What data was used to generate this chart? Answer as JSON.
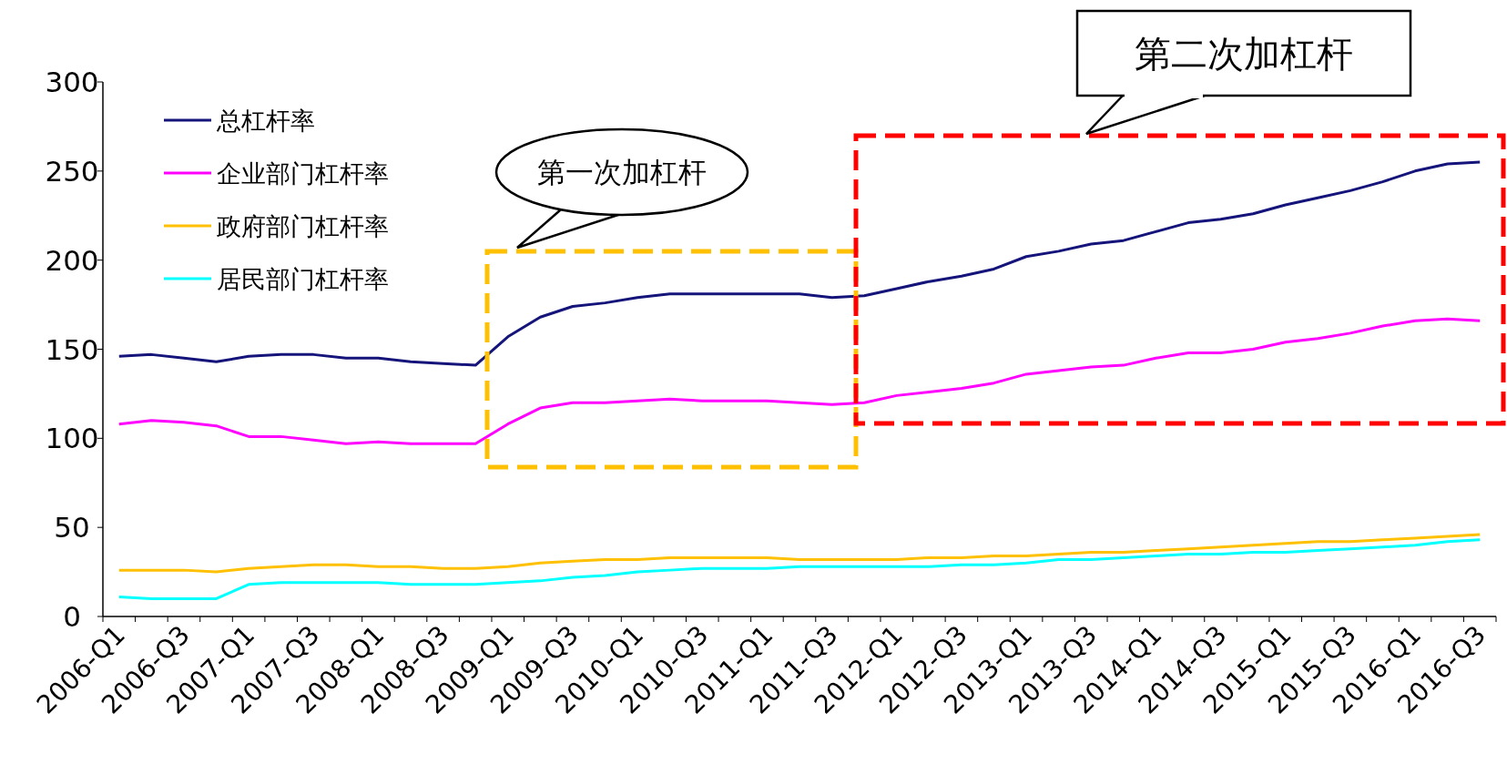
{
  "chart_data": {
    "type": "line",
    "categories": [
      "2006-Q1",
      null,
      "2006-Q3",
      null,
      "2007-Q1",
      null,
      "2007-Q3",
      null,
      "2008-Q1",
      null,
      "2008-Q3",
      null,
      "2009-Q1",
      null,
      "2009-Q3",
      null,
      "2010-Q1",
      null,
      "2010-Q3",
      null,
      "2011-Q1",
      null,
      "2011-Q3",
      null,
      "2012-Q1",
      null,
      "2012-Q3",
      null,
      "2013-Q1",
      null,
      "2013-Q3",
      null,
      "2014-Q1",
      null,
      "2014-Q3",
      null,
      "2015-Q1",
      null,
      "2015-Q3",
      null,
      "2016-Q1",
      null,
      "2016-Q3"
    ],
    "series": [
      {
        "name": "总杠杆率",
        "color": "#14147a",
        "values": [
          146,
          147,
          145,
          143,
          146,
          147,
          147,
          145,
          145,
          143,
          142,
          141,
          157,
          168,
          174,
          176,
          179,
          181,
          181,
          181,
          181,
          181,
          179,
          180,
          184,
          188,
          191,
          195,
          202,
          205,
          209,
          211,
          216,
          221,
          223,
          226,
          231,
          235,
          239,
          244,
          250,
          254,
          255
        ]
      },
      {
        "name": "企业部门杠杆率",
        "color": "#ff00ff",
        "values": [
          108,
          110,
          109,
          107,
          101,
          101,
          99,
          97,
          98,
          97,
          97,
          97,
          108,
          117,
          120,
          120,
          121,
          122,
          121,
          121,
          121,
          120,
          119,
          120,
          124,
          126,
          128,
          131,
          136,
          138,
          140,
          141,
          145,
          148,
          148,
          150,
          154,
          156,
          159,
          163,
          166,
          167,
          166
        ]
      },
      {
        "name": "政府部门杠杆率",
        "color": "#ffc000",
        "values": [
          26,
          26,
          26,
          25,
          27,
          28,
          29,
          29,
          28,
          28,
          27,
          27,
          28,
          30,
          31,
          32,
          32,
          33,
          33,
          33,
          33,
          32,
          32,
          32,
          32,
          33,
          33,
          34,
          34,
          35,
          36,
          36,
          37,
          38,
          39,
          40,
          41,
          42,
          42,
          43,
          44,
          45,
          46
        ]
      },
      {
        "name": "居民部门杠杆率",
        "color": "#00ffff",
        "values": [
          11,
          10,
          10,
          10,
          18,
          19,
          19,
          19,
          19,
          18,
          18,
          18,
          19,
          20,
          22,
          23,
          25,
          26,
          27,
          27,
          27,
          28,
          28,
          28,
          28,
          28,
          29,
          29,
          30,
          32,
          32,
          33,
          34,
          35,
          35,
          36,
          36,
          37,
          38,
          39,
          40,
          42,
          43
        ]
      }
    ],
    "ylim": [
      0,
      300
    ],
    "yticks": [
      0,
      50,
      100,
      150,
      200,
      250,
      300
    ],
    "grid": false,
    "legend": "top left",
    "marker": "none",
    "line_style": "solid",
    "annotations": [
      "第一次加杠杆",
      "第二次加杠杆"
    ]
  }
}
